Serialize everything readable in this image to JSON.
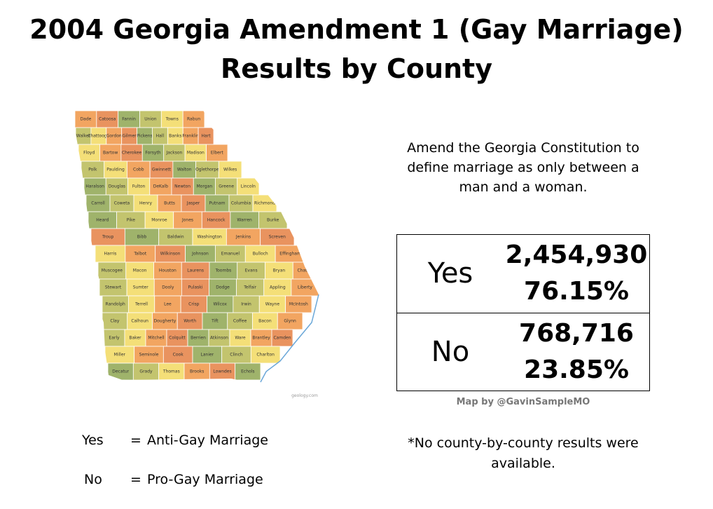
{
  "title": "2004 Georgia Amendment 1 (Gay Marriage)",
  "subtitle": "Results by County",
  "description": "Amend the Georgia Constitution to define marriage as only between a man and a woman.",
  "results": [
    {
      "option": "Yes",
      "votes": "2,454,930",
      "percent": "76.15%"
    },
    {
      "option": "No",
      "votes": "768,716",
      "percent": "23.85%"
    }
  ],
  "credit": "Map by @GavinSampleMO",
  "legend": [
    {
      "label": "Yes",
      "symbol": "=",
      "meaning": "Anti-Gay Marriage"
    },
    {
      "label": "No",
      "symbol": "=",
      "meaning": "Pro-Gay Marriage"
    }
  ],
  "note": "*No county-by-county results were available.",
  "map": {
    "source": "geology.com",
    "rows": [
      [
        "Dade",
        "Catoosa",
        "Fannin",
        "Union",
        "Towns",
        "Rabun"
      ],
      [
        "Walker",
        "Chattooga",
        "Gordon",
        "Gilmer",
        "Pickens",
        "Hall",
        "Banks",
        "Franklin",
        "Hart"
      ],
      [
        "Floyd",
        "Bartow",
        "Cherokee",
        "Forsyth",
        "Jackson",
        "Madison",
        "Elbert"
      ],
      [
        "Polk",
        "Paulding",
        "Cobb",
        "Gwinnett",
        "Walton",
        "Oglethorpe",
        "Wilkes"
      ],
      [
        "Haralson",
        "Douglas",
        "Fulton",
        "DeKalb",
        "Newton",
        "Morgan",
        "Greene",
        "Lincoln"
      ],
      [
        "Carroll",
        "Coweta",
        "Henry",
        "Butts",
        "Jasper",
        "Putnam",
        "Columbia",
        "Richmond"
      ],
      [
        "Heard",
        "Pike",
        "Monroe",
        "Jones",
        "Hancock",
        "Warren",
        "Burke"
      ],
      [
        "Troup",
        "Bibb",
        "Baldwin",
        "Washington",
        "Jenkins",
        "Screven"
      ],
      [
        "Harris",
        "Talbot",
        "Wilkinson",
        "Johnson",
        "Emanuel",
        "Bulloch",
        "Effingham"
      ],
      [
        "Muscogee",
        "Macon",
        "Houston",
        "Laurens",
        "Toombs",
        "Evans",
        "Bryan",
        "Chatham"
      ],
      [
        "Stewart",
        "Sumter",
        "Dooly",
        "Pulaski",
        "Dodge",
        "Telfair",
        "Appling",
        "Liberty"
      ],
      [
        "Randolph",
        "Terrell",
        "Lee",
        "Crisp",
        "Wilcox",
        "Irwin",
        "Wayne",
        "McIntosh"
      ],
      [
        "Clay",
        "Calhoun",
        "Dougherty",
        "Worth",
        "Tift",
        "Coffee",
        "Bacon",
        "Glynn"
      ],
      [
        "Early",
        "Baker",
        "Mitchell",
        "Colquitt",
        "Berrien",
        "Atkinson",
        "Ware",
        "Brantley",
        "Camden"
      ],
      [
        "Miller",
        "Seminole",
        "Cook",
        "Lanier",
        "Clinch",
        "Charlton"
      ],
      [
        "Decatur",
        "Grady",
        "Thomas",
        "Brooks",
        "Lowndes",
        "Echols"
      ]
    ]
  }
}
